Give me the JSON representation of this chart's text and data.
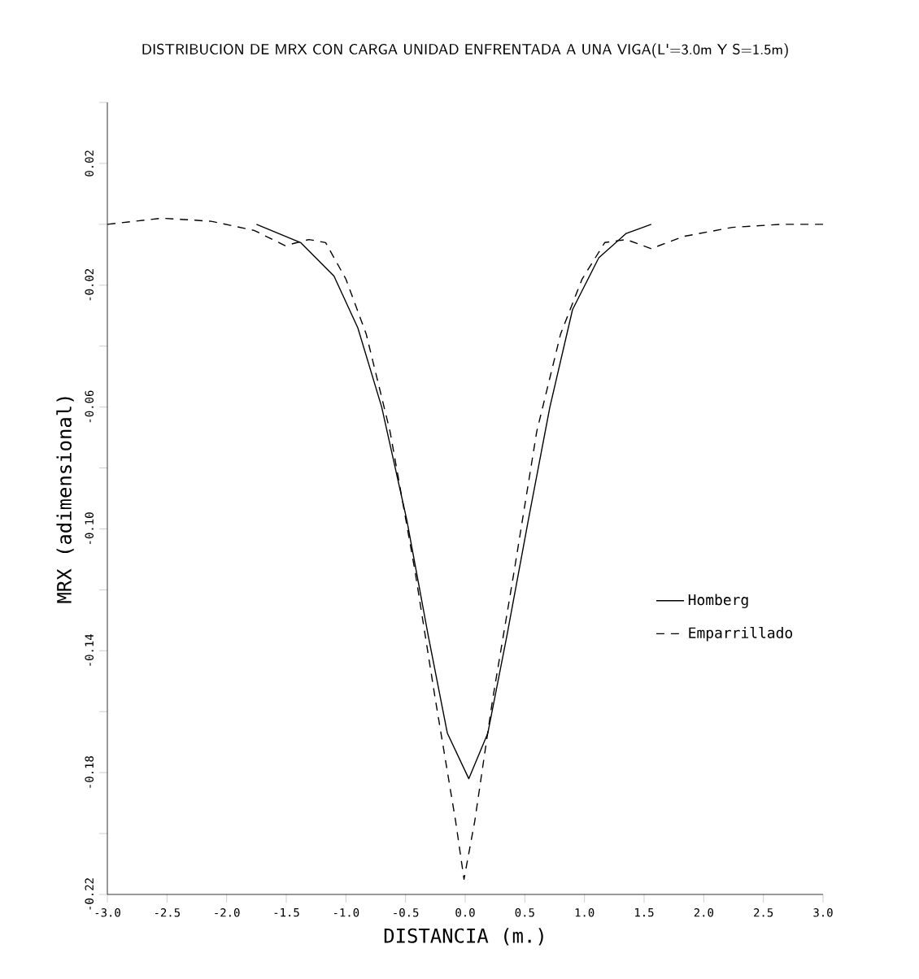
{
  "chart_data": {
    "type": "line",
    "title": "DISTRIBUCION DE MRX CON CARGA UNIDAD ENFRENTADA A UNA VIGA(L'=3.0m Y S=1.5m)",
    "xlabel": "DISTANCIA (m.)",
    "ylabel": "MRX (adimensional)",
    "xlim": [
      -3.0,
      3.0
    ],
    "ylim": [
      -0.22,
      0.04
    ],
    "xticks": [
      {
        "value": -3.0,
        "label": "-3.0"
      },
      {
        "value": -2.5,
        "label": "-2.5"
      },
      {
        "value": -2.0,
        "label": "-2.0"
      },
      {
        "value": -1.5,
        "label": "-1.5"
      },
      {
        "value": -1.0,
        "label": "-1.0"
      },
      {
        "value": -0.5,
        "label": "-0.5"
      },
      {
        "value": 0,
        "label": "0.0"
      },
      {
        "value": 0.5,
        "label": "0.5"
      },
      {
        "value": 1.0,
        "label": "1.0"
      },
      {
        "value": 1.5,
        "label": "1.5"
      },
      {
        "value": 2.0,
        "label": "2.0"
      },
      {
        "value": 2.5,
        "label": "2.5"
      },
      {
        "value": 3.0,
        "label": "3.0"
      }
    ],
    "yticks": [
      {
        "value": 0.04,
        "label": null
      },
      0.02,
      {
        "value": 0,
        "label": null
      },
      -0.02,
      {
        "value": -0.04,
        "label": null
      },
      -0.06,
      {
        "value": -0.08,
        "label": null
      },
      {
        "value": -0.1,
        "label": "-0.10"
      },
      {
        "value": -0.12,
        "label": null
      },
      -0.14,
      {
        "value": -0.16,
        "label": null
      },
      -0.18,
      {
        "value": -0.2,
        "label": null
      },
      -0.22
    ],
    "grid": false,
    "legend": "right",
    "marker": "none",
    "series": [
      {
        "name": "Homberg",
        "color": "#000000",
        "line_style": "solid",
        "x": [
          -1.75,
          -1.38,
          -1.1,
          -0.9,
          -0.7,
          -0.49,
          -0.31,
          -0.15,
          0.03,
          0.19,
          0.35,
          0.53,
          0.71,
          0.9,
          1.12,
          1.35,
          1.56
        ],
        "values": [
          0.0,
          -0.006,
          -0.017,
          -0.034,
          -0.06,
          -0.097,
          -0.135,
          -0.167,
          -0.182,
          -0.167,
          -0.135,
          -0.097,
          -0.06,
          -0.028,
          -0.011,
          -0.003,
          0.0
        ]
      },
      {
        "name": "Emparrillado",
        "color": "#000000",
        "line_style": "dashed",
        "x": [
          -3.0,
          -2.54,
          -2.13,
          -1.77,
          -1.51,
          -1.31,
          -1.17,
          -1.0,
          -0.83,
          -0.63,
          -0.42,
          -0.25,
          -0.08,
          -0.01,
          0.08,
          0.23,
          0.41,
          0.6,
          0.8,
          0.98,
          1.17,
          1.35,
          1.56,
          1.83,
          2.24,
          2.65,
          3.0
        ],
        "values": [
          0.0,
          0.002,
          0.001,
          -0.002,
          -0.007,
          -0.005,
          -0.006,
          -0.018,
          -0.036,
          -0.068,
          -0.114,
          -0.156,
          -0.196,
          -0.215,
          -0.196,
          -0.156,
          -0.114,
          -0.068,
          -0.036,
          -0.018,
          -0.006,
          -0.005,
          -0.008,
          -0.004,
          -0.001,
          0.0,
          0.0
        ]
      }
    ]
  }
}
